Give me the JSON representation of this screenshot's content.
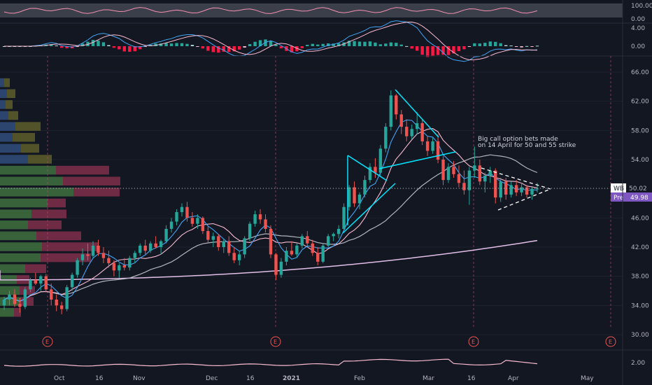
{
  "chart_data": {
    "type": "candlestick",
    "symbol": "WB",
    "price_tag": {
      "symbol": "WB",
      "value": "50.02"
    },
    "pre_tag": {
      "label": "Pre",
      "value": "49.98"
    },
    "annotation": "Big call option bets made on 14 April for 50 and 55 strike",
    "annotation_lines": [
      "Big call option bets made",
      "on 14 April for 50 and 55 strike"
    ],
    "xaxis_labels": [
      "Oct",
      "16",
      "Nov",
      "Dec",
      "16",
      "2021",
      "Feb",
      "Mar",
      "16",
      "Apr",
      "May"
    ],
    "earnings_marker": "E",
    "price_axis": {
      "ticks": [
        "66.00",
        "62.00",
        "58.00",
        "54.00",
        "50.00",
        "46.00",
        "42.00",
        "38.00",
        "34.00",
        "30.00"
      ],
      "ylim": [
        29,
        67
      ]
    },
    "rsi_axis": {
      "ticks": [
        "100.00",
        "0.00"
      ]
    },
    "macd_axis": {
      "ticks": [
        "4.00",
        "0.00"
      ]
    },
    "bottom_axis": {
      "ticks": [
        "2.00"
      ]
    },
    "candles": [
      [
        34.0,
        35.2,
        33.4,
        34.8
      ],
      [
        34.8,
        36.0,
        34.0,
        35.5
      ],
      [
        35.5,
        36.2,
        33.8,
        34.2
      ],
      [
        34.2,
        35.0,
        33.0,
        33.8
      ],
      [
        33.8,
        36.5,
        33.5,
        36.2
      ],
      [
        36.2,
        37.8,
        35.8,
        37.5
      ],
      [
        37.5,
        38.5,
        36.8,
        37.0
      ],
      [
        37.0,
        38.2,
        36.0,
        38.0
      ],
      [
        38.0,
        38.3,
        35.8,
        36.2
      ],
      [
        36.2,
        37.0,
        34.0,
        34.8
      ],
      [
        34.8,
        35.5,
        33.2,
        34.0
      ],
      [
        34.0,
        34.5,
        32.8,
        33.5
      ],
      [
        33.5,
        36.8,
        33.2,
        36.5
      ],
      [
        36.5,
        38.5,
        36.0,
        38.2
      ],
      [
        38.2,
        40.5,
        37.8,
        40.2
      ],
      [
        40.2,
        41.8,
        39.5,
        41.0
      ],
      [
        41.0,
        42.5,
        40.2,
        40.8
      ],
      [
        40.8,
        42.8,
        40.5,
        42.2
      ],
      [
        42.2,
        43.0,
        40.8,
        41.2
      ],
      [
        41.2,
        42.0,
        39.8,
        40.5
      ],
      [
        40.5,
        41.5,
        39.2,
        39.8
      ],
      [
        39.8,
        40.2,
        38.0,
        38.8
      ],
      [
        38.8,
        39.8,
        37.8,
        39.5
      ],
      [
        39.5,
        40.5,
        38.8,
        39.2
      ],
      [
        39.2,
        40.8,
        38.8,
        40.5
      ],
      [
        40.5,
        41.5,
        39.8,
        41.2
      ],
      [
        41.2,
        42.5,
        40.8,
        42.2
      ],
      [
        42.2,
        43.0,
        41.0,
        41.5
      ],
      [
        41.5,
        42.8,
        41.2,
        42.5
      ],
      [
        42.5,
        43.5,
        41.8,
        42.0
      ],
      [
        42.0,
        43.0,
        41.0,
        42.8
      ],
      [
        42.8,
        45.0,
        42.5,
        44.5
      ],
      [
        44.5,
        46.0,
        44.0,
        45.5
      ],
      [
        45.5,
        47.2,
        45.0,
        46.8
      ],
      [
        46.8,
        48.0,
        46.2,
        47.5
      ],
      [
        47.5,
        48.2,
        45.5,
        46.0
      ],
      [
        46.0,
        46.8,
        44.8,
        45.2
      ],
      [
        45.2,
        46.5,
        44.5,
        46.0
      ],
      [
        46.0,
        46.2,
        43.8,
        44.2
      ],
      [
        44.2,
        44.8,
        42.5,
        43.0
      ],
      [
        43.0,
        44.0,
        42.0,
        43.5
      ],
      [
        43.5,
        43.8,
        41.5,
        42.0
      ],
      [
        42.0,
        43.2,
        41.2,
        42.8
      ],
      [
        42.8,
        43.5,
        40.8,
        41.2
      ],
      [
        41.2,
        42.0,
        39.8,
        40.2
      ],
      [
        40.2,
        41.5,
        39.5,
        41.0
      ],
      [
        41.0,
        43.5,
        40.5,
        43.2
      ],
      [
        43.2,
        45.5,
        42.8,
        45.2
      ],
      [
        45.2,
        47.0,
        44.8,
        46.5
      ],
      [
        46.5,
        47.2,
        45.2,
        45.8
      ],
      [
        45.8,
        46.5,
        44.0,
        44.5
      ],
      [
        44.5,
        45.0,
        40.5,
        41.0
      ],
      [
        41.0,
        41.2,
        37.5,
        38.2
      ],
      [
        38.2,
        40.5,
        37.8,
        40.0
      ],
      [
        40.0,
        42.0,
        39.5,
        41.5
      ],
      [
        41.5,
        42.8,
        40.8,
        41.0
      ],
      [
        41.0,
        42.5,
        40.5,
        42.2
      ],
      [
        42.2,
        43.8,
        41.8,
        43.5
      ],
      [
        43.5,
        44.2,
        42.2,
        42.5
      ],
      [
        42.5,
        43.0,
        40.8,
        41.2
      ],
      [
        41.2,
        42.0,
        39.5,
        40.0
      ],
      [
        40.0,
        42.5,
        39.8,
        42.2
      ],
      [
        42.2,
        43.8,
        42.0,
        43.5
      ],
      [
        43.5,
        44.0,
        42.8,
        43.8
      ],
      [
        43.8,
        45.0,
        43.2,
        44.5
      ],
      [
        44.5,
        48.0,
        44.2,
        47.5
      ],
      [
        47.5,
        50.5,
        47.0,
        50.2
      ],
      [
        50.2,
        51.0,
        47.5,
        48.0
      ],
      [
        48.0,
        49.5,
        47.2,
        49.2
      ],
      [
        49.2,
        51.8,
        48.8,
        51.2
      ],
      [
        51.2,
        53.5,
        50.8,
        53.0
      ],
      [
        53.0,
        54.2,
        51.5,
        52.2
      ],
      [
        52.2,
        56.0,
        51.8,
        55.5
      ],
      [
        55.5,
        59.0,
        55.0,
        58.5
      ],
      [
        58.5,
        63.5,
        58.0,
        62.8
      ],
      [
        62.8,
        63.0,
        59.5,
        60.2
      ],
      [
        60.2,
        60.8,
        57.5,
        58.5
      ],
      [
        58.5,
        59.5,
        56.5,
        57.2
      ],
      [
        57.2,
        58.8,
        56.8,
        58.2
      ],
      [
        58.2,
        60.5,
        57.5,
        59.0
      ],
      [
        59.0,
        59.5,
        56.0,
        56.5
      ],
      [
        56.5,
        57.2,
        54.5,
        55.2
      ],
      [
        55.2,
        57.0,
        54.8,
        56.5
      ],
      [
        56.5,
        57.5,
        53.5,
        54.0
      ],
      [
        54.0,
        54.5,
        50.5,
        51.2
      ],
      [
        51.2,
        53.5,
        50.8,
        53.0
      ],
      [
        53.0,
        53.8,
        51.5,
        52.0
      ],
      [
        52.0,
        53.2,
        50.2,
        50.8
      ],
      [
        50.8,
        52.5,
        49.2,
        49.8
      ],
      [
        49.8,
        53.0,
        47.8,
        52.5
      ],
      [
        52.5,
        55.8,
        51.5,
        53.2
      ],
      [
        53.2,
        54.0,
        50.5,
        51.0
      ],
      [
        51.0,
        52.2,
        49.5,
        51.8
      ],
      [
        51.8,
        53.0,
        50.8,
        52.5
      ],
      [
        52.5,
        52.8,
        48.0,
        48.8
      ],
      [
        48.8,
        51.5,
        48.2,
        51.0
      ],
      [
        51.0,
        51.5,
        48.5,
        49.2
      ],
      [
        49.2,
        51.0,
        48.8,
        50.5
      ],
      [
        50.5,
        51.2,
        49.0,
        49.5
      ],
      [
        49.5,
        50.8,
        49.0,
        50.2
      ],
      [
        50.2,
        50.5,
        48.8,
        49.2
      ],
      [
        49.2,
        50.2,
        48.5,
        50.0
      ],
      [
        50.0,
        50.8,
        49.5,
        50.02
      ]
    ],
    "sma_fast_color": "#2962ff",
    "sma_mid_color": "#ef9a9a",
    "sma_slow_color": "#b2b5be",
    "sma_long_color": "#ce93d8",
    "up_color": "#26a69a",
    "down_color": "#ef5350"
  }
}
